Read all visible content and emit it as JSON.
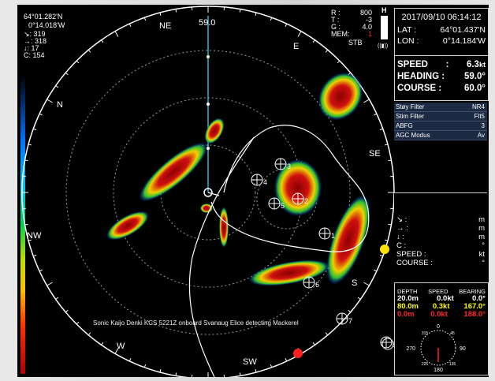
{
  "position": {
    "lat": "64°01.282'N",
    "lon": "0°14.018'W"
  },
  "readouts_left": [
    {
      "icon": "arrow-down-right-icon",
      "glyph": "↘",
      "value": ": 319"
    },
    {
      "icon": "arrow-right-icon",
      "glyph": "→",
      "value": ": 318"
    },
    {
      "icon": "arrow-down-icon",
      "glyph": "↓",
      "value": ": 17"
    },
    {
      "icon": "letter-c",
      "glyph": "C",
      "value": ": 154"
    }
  ],
  "bearing_top": "59.0",
  "compass": {
    "ne": "NE",
    "e": "E",
    "se": "SE",
    "s": "S",
    "sw": "SW",
    "w": "W",
    "nw": "NW",
    "n": "N"
  },
  "rtg": {
    "r_label": "R :",
    "r_value": "800",
    "t_label": "T :",
    "t_value": "-3",
    "g_label": "G :",
    "g_value": "4.0",
    "mem_label": "MEM:",
    "mem_value": "1",
    "stb": "STB",
    "h": "H"
  },
  "header": {
    "datetime": "2017/09/10 06:14:12",
    "lat_label": "LAT :",
    "lat_value": "64°01.437'N",
    "lon_label": "LON :",
    "lon_value": "0°14.184'W"
  },
  "nav": {
    "speed_label": "SPEED",
    "speed_value": "6.3",
    "speed_unit": "kt",
    "heading_label": "HEADING :",
    "heading_value": "59.0°",
    "course_label": "COURSE :",
    "course_value": "60.0°"
  },
  "filters": [
    {
      "label": "Støy Filter",
      "value": "NR4"
    },
    {
      "label": "Stim Filter",
      "value": "Flt5"
    },
    {
      "label": "ABFG",
      "value": "3"
    },
    {
      "label": "AGC Modus",
      "value": "Av"
    }
  ],
  "target_info": [
    {
      "icon": "arrow-down-right-icon",
      "label": "↘ :",
      "unit": "m"
    },
    {
      "icon": "arrow-right-icon",
      "label": "→ :",
      "unit": "m"
    },
    {
      "icon": "arrow-down-icon",
      "label": "↓ :",
      "unit": "m"
    },
    {
      "icon": "letter-c",
      "label": "C :",
      "unit": "°"
    },
    {
      "icon": "",
      "label": "SPEED  :",
      "unit": "kt"
    },
    {
      "icon": "",
      "label": "COURSE :",
      "unit": "°"
    }
  ],
  "current_table": {
    "headers": [
      "DEPTH",
      "SPEED",
      "BEARING"
    ],
    "rows": [
      {
        "depth": "20.0m",
        "speed": "0.0kt",
        "bearing": "0.0°",
        "color": "#ffffff"
      },
      {
        "depth": "80.0m",
        "speed": "0.3kt",
        "bearing": "167.0°",
        "color": "#ffff00"
      },
      {
        "depth": "0.0m",
        "speed": "0.0kt",
        "bearing": "188.0°",
        "color": "#ff2a2a"
      }
    ]
  },
  "mini_compass": {
    "top": "0",
    "bottom": "180",
    "left": "270",
    "right": "90",
    "nw": "315",
    "ne": "45",
    "sw": "225",
    "se": "135"
  },
  "markers": [
    "1",
    "2",
    "3",
    "4",
    "5",
    "6",
    "7",
    "8"
  ],
  "caption": "Sonic Kaijo Denki KCS 5221Z onboard Svanaug Elice detecting Mackerel",
  "colors": {
    "accent_red": "#ff2020",
    "accent_yellow": "#ffff00",
    "bg": "#000000"
  }
}
